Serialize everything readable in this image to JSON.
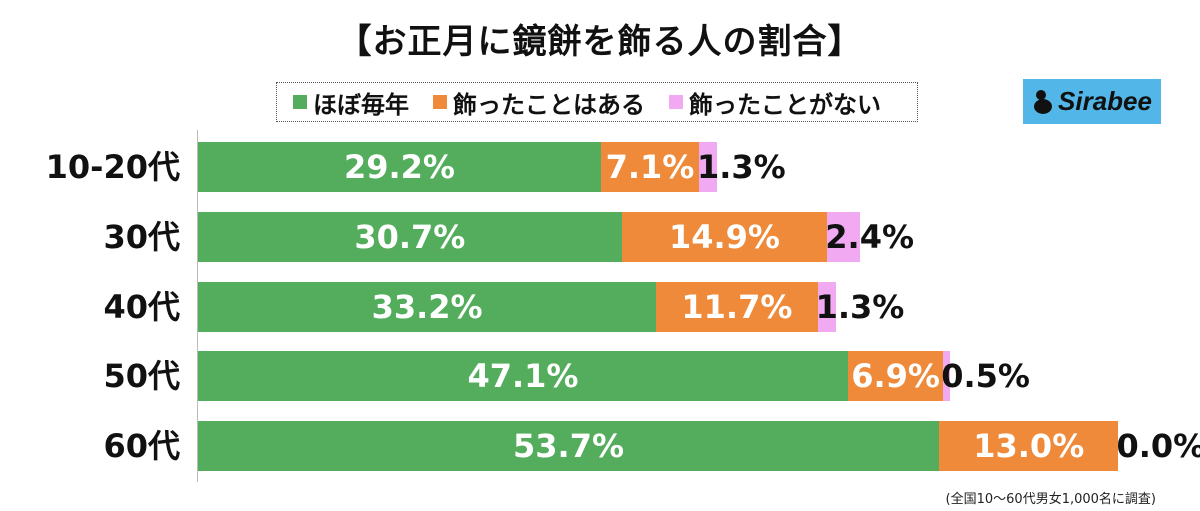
{
  "title": "【お正月に鏡餅を飾る人の割合】",
  "logo": "Sirabee",
  "note": "(全国10〜60代男女1,000名に調査)",
  "colors": {
    "ほぼ毎年": "#53ad5c",
    "飾ったことはある": "#ee8a3a",
    "飾ったことがない": "#f1aaf2"
  },
  "chart_data": {
    "type": "bar",
    "orientation": "horizontal",
    "stacked": true,
    "title": "【お正月に鏡餅を飾る人の割合】",
    "categories": [
      "10-20代",
      "30代",
      "40代",
      "50代",
      "60代"
    ],
    "series": [
      {
        "name": "ほぼ毎年",
        "values": [
          29.2,
          30.7,
          33.2,
          47.1,
          53.7
        ],
        "labels": [
          "29.2%",
          "30.7%",
          "33.2%",
          "47.1%",
          "53.7%"
        ]
      },
      {
        "name": "飾ったことはある",
        "values": [
          7.1,
          14.9,
          11.7,
          6.9,
          13.0
        ],
        "labels": [
          "7.1%",
          "14.9%",
          "11.7%",
          "6.9%",
          "13.0%"
        ]
      },
      {
        "name": "飾ったことがない",
        "values": [
          1.3,
          2.4,
          1.3,
          0.5,
          0.0
        ],
        "labels": [
          "1.3%",
          "2.4%",
          "1.3%",
          "0.5%",
          "0.0%"
        ]
      }
    ],
    "legend_position": "top",
    "grid": false
  }
}
